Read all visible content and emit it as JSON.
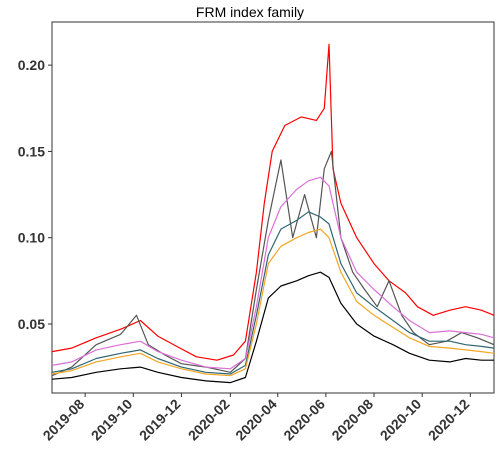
{
  "chart_data": {
    "type": "line",
    "title": "FRM index family",
    "xlabel": "",
    "ylabel": "",
    "x_range": [
      "2019-06-20",
      "2020-12-31"
    ],
    "ylim": [
      0.01,
      0.225
    ],
    "y_ticks": [
      0.05,
      0.1,
      0.15,
      0.2
    ],
    "y_tick_labels": [
      "0.05",
      "0.10",
      "0.15",
      "0.20"
    ],
    "x_ticks": [
      "2019-08-01",
      "2019-10-01",
      "2019-12-01",
      "2020-02-01",
      "2020-04-01",
      "2020-06-01",
      "2020-08-01",
      "2020-10-01",
      "2020-12-01"
    ],
    "x_tick_labels": [
      "2019-08",
      "2019-10",
      "2019-12",
      "2020-02",
      "2020-04",
      "2020-06",
      "2020-08",
      "2020-10",
      "2020-12"
    ],
    "grid": false,
    "legend": "none",
    "series": [
      {
        "color": "#ff0000",
        "x": [
          "2019-06-20",
          "2019-07-15",
          "2019-08-15",
          "2019-09-15",
          "2019-10-10",
          "2019-11-01",
          "2019-11-25",
          "2019-12-20",
          "2020-01-15",
          "2020-02-05",
          "2020-02-20",
          "2020-03-05",
          "2020-03-15",
          "2020-03-25",
          "2020-04-10",
          "2020-05-01",
          "2020-05-20",
          "2020-05-30",
          "2020-06-05",
          "2020-06-10",
          "2020-06-20",
          "2020-07-10",
          "2020-08-01",
          "2020-08-20",
          "2020-09-10",
          "2020-09-25",
          "2020-10-15",
          "2020-11-05",
          "2020-11-25",
          "2020-12-15",
          "2020-12-31"
        ],
        "y": [
          0.034,
          0.036,
          0.042,
          0.047,
          0.052,
          0.043,
          0.037,
          0.031,
          0.029,
          0.032,
          0.04,
          0.08,
          0.12,
          0.15,
          0.165,
          0.17,
          0.168,
          0.175,
          0.212,
          0.14,
          0.12,
          0.1,
          0.085,
          0.075,
          0.068,
          0.06,
          0.055,
          0.058,
          0.06,
          0.058,
          0.055
        ]
      },
      {
        "color": "#555555",
        "x": [
          "2019-06-20",
          "2019-07-15",
          "2019-08-15",
          "2019-09-15",
          "2019-10-05",
          "2019-10-20",
          "2019-11-10",
          "2019-12-01",
          "2020-01-01",
          "2020-02-01",
          "2020-02-20",
          "2020-03-05",
          "2020-03-20",
          "2020-04-05",
          "2020-04-20",
          "2020-05-05",
          "2020-05-20",
          "2020-05-30",
          "2020-06-08",
          "2020-06-20",
          "2020-07-05",
          "2020-07-20",
          "2020-08-05",
          "2020-08-20",
          "2020-09-05",
          "2020-09-20",
          "2020-10-10",
          "2020-11-01",
          "2020-11-20",
          "2020-12-10",
          "2020-12-31"
        ],
        "y": [
          0.02,
          0.025,
          0.038,
          0.044,
          0.055,
          0.038,
          0.032,
          0.027,
          0.025,
          0.022,
          0.03,
          0.07,
          0.11,
          0.145,
          0.1,
          0.125,
          0.1,
          0.14,
          0.15,
          0.1,
          0.08,
          0.07,
          0.06,
          0.075,
          0.055,
          0.045,
          0.038,
          0.04,
          0.045,
          0.042,
          0.038
        ]
      },
      {
        "color": "#da70d6",
        "x": [
          "2019-06-20",
          "2019-07-15",
          "2019-08-15",
          "2019-09-15",
          "2019-10-10",
          "2019-11-01",
          "2019-12-01",
          "2020-01-01",
          "2020-02-01",
          "2020-02-20",
          "2020-03-05",
          "2020-03-20",
          "2020-04-05",
          "2020-04-25",
          "2020-05-10",
          "2020-05-25",
          "2020-06-05",
          "2020-06-20",
          "2020-07-10",
          "2020-08-01",
          "2020-08-25",
          "2020-09-15",
          "2020-10-10",
          "2020-11-05",
          "2020-11-25",
          "2020-12-15",
          "2020-12-31"
        ],
        "y": [
          0.026,
          0.028,
          0.035,
          0.038,
          0.04,
          0.034,
          0.029,
          0.025,
          0.024,
          0.03,
          0.06,
          0.1,
          0.118,
          0.128,
          0.133,
          0.135,
          0.13,
          0.1,
          0.08,
          0.07,
          0.06,
          0.052,
          0.045,
          0.046,
          0.045,
          0.044,
          0.042
        ]
      },
      {
        "color": "#2f6673",
        "x": [
          "2019-06-20",
          "2019-07-15",
          "2019-08-15",
          "2019-09-15",
          "2019-10-10",
          "2019-11-01",
          "2019-12-01",
          "2020-01-01",
          "2020-02-01",
          "2020-02-20",
          "2020-03-05",
          "2020-03-20",
          "2020-04-05",
          "2020-04-25",
          "2020-05-10",
          "2020-05-25",
          "2020-06-05",
          "2020-06-20",
          "2020-07-10",
          "2020-08-01",
          "2020-08-25",
          "2020-09-15",
          "2020-10-10",
          "2020-11-05",
          "2020-11-25",
          "2020-12-15",
          "2020-12-31"
        ],
        "y": [
          0.022,
          0.024,
          0.03,
          0.033,
          0.035,
          0.03,
          0.025,
          0.022,
          0.021,
          0.026,
          0.055,
          0.09,
          0.105,
          0.11,
          0.115,
          0.112,
          0.108,
          0.085,
          0.068,
          0.06,
          0.052,
          0.045,
          0.04,
          0.04,
          0.038,
          0.037,
          0.036
        ]
      },
      {
        "color": "#f5a623",
        "x": [
          "2019-06-20",
          "2019-07-15",
          "2019-08-15",
          "2019-09-15",
          "2019-10-10",
          "2019-11-01",
          "2019-12-01",
          "2020-01-01",
          "2020-02-01",
          "2020-02-20",
          "2020-03-05",
          "2020-03-20",
          "2020-04-05",
          "2020-04-25",
          "2020-05-10",
          "2020-05-25",
          "2020-06-05",
          "2020-06-20",
          "2020-07-10",
          "2020-08-01",
          "2020-08-25",
          "2020-09-15",
          "2020-10-10",
          "2020-11-05",
          "2020-11-25",
          "2020-12-15",
          "2020-12-31"
        ],
        "y": [
          0.021,
          0.023,
          0.028,
          0.031,
          0.033,
          0.028,
          0.024,
          0.021,
          0.02,
          0.024,
          0.05,
          0.085,
          0.095,
          0.1,
          0.103,
          0.105,
          0.1,
          0.08,
          0.063,
          0.055,
          0.048,
          0.042,
          0.037,
          0.036,
          0.035,
          0.034,
          0.033
        ]
      },
      {
        "color": "#000000",
        "x": [
          "2019-06-20",
          "2019-07-15",
          "2019-08-15",
          "2019-09-15",
          "2019-10-10",
          "2019-11-01",
          "2019-12-01",
          "2020-01-01",
          "2020-02-01",
          "2020-02-20",
          "2020-03-05",
          "2020-03-20",
          "2020-04-05",
          "2020-04-25",
          "2020-05-10",
          "2020-05-25",
          "2020-06-05",
          "2020-06-20",
          "2020-07-10",
          "2020-08-01",
          "2020-08-25",
          "2020-09-15",
          "2020-10-10",
          "2020-11-05",
          "2020-11-25",
          "2020-12-15",
          "2020-12-31"
        ],
        "y": [
          0.018,
          0.019,
          0.022,
          0.024,
          0.025,
          0.022,
          0.019,
          0.017,
          0.016,
          0.019,
          0.04,
          0.065,
          0.072,
          0.075,
          0.078,
          0.08,
          0.077,
          0.062,
          0.05,
          0.043,
          0.038,
          0.033,
          0.029,
          0.028,
          0.03,
          0.029,
          0.029
        ]
      }
    ]
  }
}
